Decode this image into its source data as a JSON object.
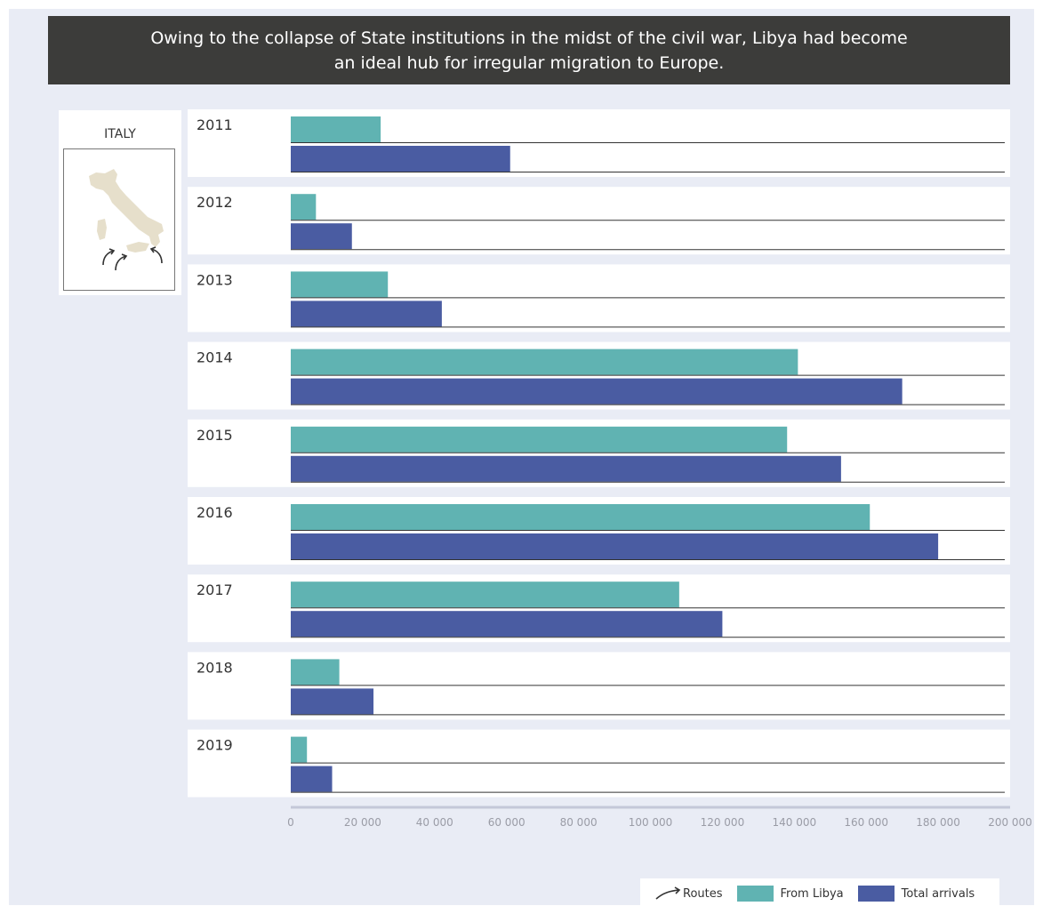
{
  "header": {
    "line1": "Owing to the collapse of State institutions in the midst of the civil war, Libya had become",
    "line2": "an ideal hub for irregular migration to Europe."
  },
  "map": {
    "label": "ITALY"
  },
  "colors": {
    "from_libya": "#60b3b2",
    "total": "#4a5ca2",
    "header_bg": "#3c3c3a",
    "background": "#e9ecf5"
  },
  "chart_data": {
    "type": "bar",
    "orientation": "horizontal",
    "categories": [
      "2011",
      "2012",
      "2013",
      "2014",
      "2015",
      "2016",
      "2017",
      "2018",
      "2019"
    ],
    "series": [
      {
        "name": "From Libya",
        "values": [
          25000,
          7000,
          27000,
          141000,
          138000,
          161000,
          108000,
          13500,
          4500
        ]
      },
      {
        "name": "Total arrivals",
        "values": [
          61000,
          17000,
          42000,
          170000,
          153000,
          180000,
          120000,
          23000,
          11500
        ]
      }
    ],
    "xlim": [
      0,
      200000
    ],
    "xticks": [
      "0",
      "20 000",
      "40 000",
      "60 000",
      "80 000",
      "100 000",
      "120 000",
      "140 000",
      "160 000",
      "180 000",
      "200 000"
    ],
    "grid": false
  },
  "legend": {
    "routes": "Routes",
    "from_libya": "From Libya",
    "total": "Total arrivals"
  }
}
